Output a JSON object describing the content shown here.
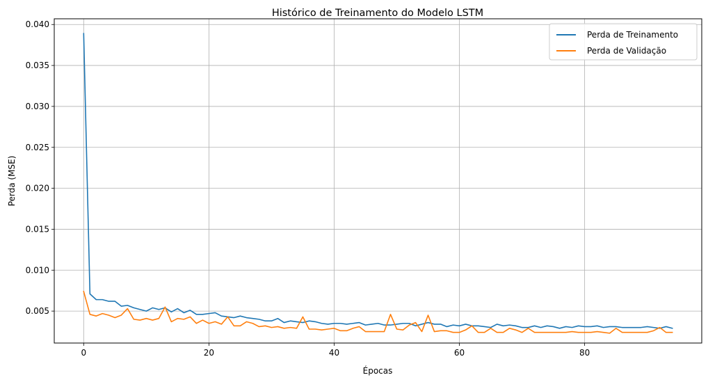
{
  "chart_data": {
    "type": "line",
    "title": "Histórico de Treinamento do Modelo LSTM",
    "xlabel": "Épocas",
    "ylabel": "Perda (MSE)",
    "xlim": [
      -4.7,
      98.7
    ],
    "ylim": [
      0.0011,
      0.0407
    ],
    "xticks": [
      0,
      20,
      40,
      60,
      80
    ],
    "yticks": [
      0.005,
      0.01,
      0.015,
      0.02,
      0.025,
      0.03,
      0.035,
      0.04
    ],
    "ytick_labels": [
      "0.005",
      "0.010",
      "0.015",
      "0.020",
      "0.025",
      "0.030",
      "0.035",
      "0.040"
    ],
    "xtick_labels": [
      "0",
      "20",
      "40",
      "60",
      "80"
    ],
    "grid": true,
    "legend_position": "top-right",
    "x": [
      0,
      1,
      2,
      3,
      4,
      5,
      6,
      7,
      8,
      9,
      10,
      11,
      12,
      13,
      14,
      15,
      16,
      17,
      18,
      19,
      20,
      21,
      22,
      23,
      24,
      25,
      26,
      27,
      28,
      29,
      30,
      31,
      32,
      33,
      34,
      35,
      36,
      37,
      38,
      39,
      40,
      41,
      42,
      43,
      44,
      45,
      46,
      47,
      48,
      49,
      50,
      51,
      52,
      53,
      54,
      55,
      56,
      57,
      58,
      59,
      60,
      61,
      62,
      63,
      64,
      65,
      66,
      67,
      68,
      69,
      70,
      71,
      72,
      73,
      74,
      75,
      76,
      77,
      78,
      79,
      80,
      81,
      82,
      83,
      84,
      85,
      86,
      87,
      88,
      89,
      90,
      91,
      92,
      93,
      94
    ],
    "series": [
      {
        "name": "Perda de Treinamento",
        "color": "#1f77b4",
        "values": [
          0.0389,
          0.0071,
          0.0064,
          0.0064,
          0.0062,
          0.0062,
          0.0056,
          0.0057,
          0.0054,
          0.0052,
          0.005,
          0.0054,
          0.0052,
          0.0054,
          0.0049,
          0.0053,
          0.0048,
          0.0051,
          0.0046,
          0.0046,
          0.0047,
          0.0048,
          0.0044,
          0.0043,
          0.0042,
          0.0044,
          0.0042,
          0.0041,
          0.004,
          0.0038,
          0.0038,
          0.0041,
          0.0036,
          0.0038,
          0.0037,
          0.0036,
          0.0038,
          0.0037,
          0.0035,
          0.0034,
          0.0035,
          0.0035,
          0.0034,
          0.0035,
          0.0036,
          0.0033,
          0.0034,
          0.0035,
          0.0033,
          0.0033,
          0.0034,
          0.0035,
          0.0035,
          0.0032,
          0.0034,
          0.0036,
          0.0034,
          0.0034,
          0.0031,
          0.0033,
          0.0032,
          0.0034,
          0.0032,
          0.0032,
          0.0031,
          0.003,
          0.0034,
          0.0032,
          0.0033,
          0.0032,
          0.003,
          0.003,
          0.0032,
          0.003,
          0.0032,
          0.0031,
          0.0029,
          0.0031,
          0.003,
          0.0032,
          0.0031,
          0.0031,
          0.0032,
          0.003,
          0.0031,
          0.0031,
          0.003,
          0.003,
          0.003,
          0.003,
          0.0031,
          0.003,
          0.0029,
          0.0031,
          0.0029
        ]
      },
      {
        "name": "Perda de Validação",
        "color": "#ff7f0e",
        "values": [
          0.0074,
          0.0046,
          0.0044,
          0.0047,
          0.0045,
          0.0042,
          0.0045,
          0.0053,
          0.004,
          0.0039,
          0.0041,
          0.0039,
          0.0041,
          0.0055,
          0.0037,
          0.0041,
          0.004,
          0.0043,
          0.0035,
          0.0039,
          0.0035,
          0.0037,
          0.0034,
          0.0043,
          0.0032,
          0.0032,
          0.0037,
          0.0035,
          0.0031,
          0.0032,
          0.003,
          0.0031,
          0.0029,
          0.003,
          0.0029,
          0.0043,
          0.0028,
          0.0028,
          0.0027,
          0.0028,
          0.0029,
          0.0026,
          0.0026,
          0.0029,
          0.0031,
          0.0025,
          0.0025,
          0.0025,
          0.0025,
          0.0046,
          0.0028,
          0.0027,
          0.0033,
          0.0036,
          0.0025,
          0.0045,
          0.0025,
          0.0026,
          0.0026,
          0.0024,
          0.0024,
          0.0027,
          0.0032,
          0.0024,
          0.0024,
          0.0029,
          0.0024,
          0.0024,
          0.0029,
          0.0027,
          0.0024,
          0.0029,
          0.0024,
          0.0024,
          0.0024,
          0.0024,
          0.0024,
          0.0024,
          0.0025,
          0.0024,
          0.0024,
          0.0024,
          0.0025,
          0.0024,
          0.0023,
          0.0029,
          0.0024,
          0.0024,
          0.0024,
          0.0024,
          0.0024,
          0.0026,
          0.003,
          0.0024,
          0.0024
        ]
      }
    ]
  }
}
